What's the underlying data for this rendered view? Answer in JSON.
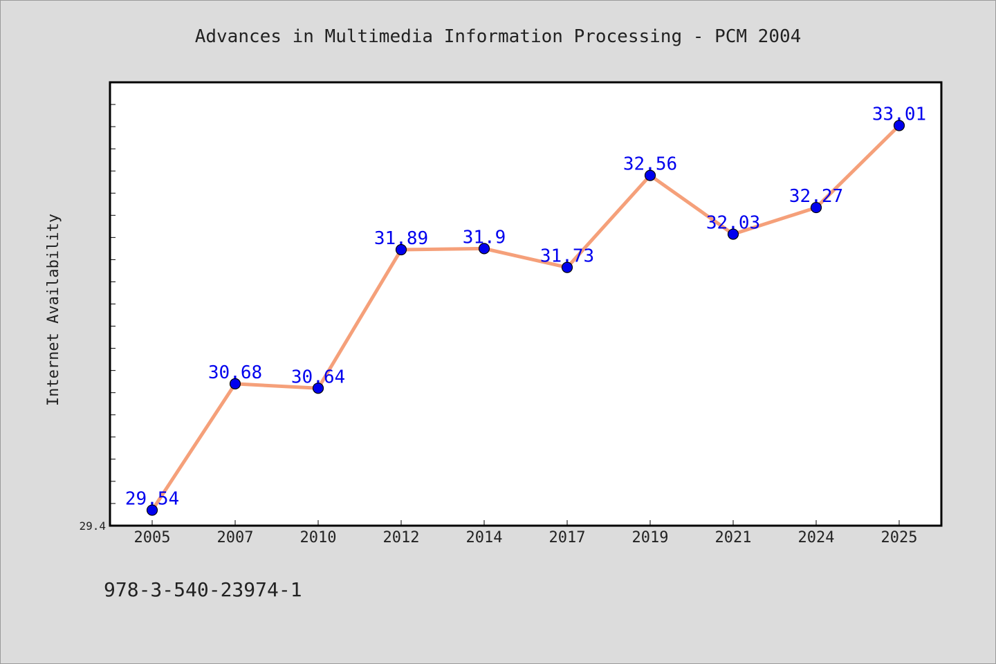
{
  "chart_data": {
    "type": "line",
    "title": "Advances in Multimedia Information Processing - PCM 2004",
    "xlabel": "",
    "ylabel": "Internet Availability",
    "categories": [
      "2005",
      "2007",
      "2010",
      "2012",
      "2014",
      "2017",
      "2019",
      "2021",
      "2024",
      "2025"
    ],
    "series": [
      {
        "values": [
          29.54,
          30.68,
          30.64,
          31.89,
          31.9,
          31.73,
          32.56,
          32.03,
          32.27,
          33.01
        ],
        "labels": [
          "29.54",
          "30.68",
          "30.64",
          "31.89",
          "31.9",
          "31.73",
          "32.56",
          "32.03",
          "32.27",
          "33.01"
        ],
        "line_color": "#f5a07a",
        "marker_color": "#0000ee",
        "label_color": "#0000ee"
      }
    ],
    "ylim": [
      29.4,
      33.4
    ],
    "yticks_labeled": [
      "29.4"
    ],
    "grid": false,
    "legend": "none",
    "plot_background": "#ffffff",
    "page_background": "#dcdcdc"
  },
  "footer": {
    "isbn": "978-3-540-23974-1"
  }
}
